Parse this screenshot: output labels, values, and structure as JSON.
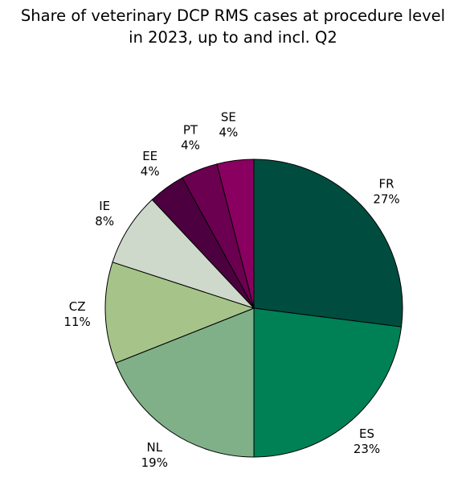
{
  "chart_data": {
    "type": "pie",
    "title_lines": [
      "Share of veterinary DCP RMS cases at procedure level",
      "in 2023, up to and incl. Q2"
    ],
    "slices": [
      {
        "label": "FR",
        "pct_text": "27%",
        "value": 27,
        "color": "#004d3f"
      },
      {
        "label": "ES",
        "pct_text": "23%",
        "value": 23,
        "color": "#008055"
      },
      {
        "label": "NL",
        "pct_text": "19%",
        "value": 19,
        "color": "#80b088"
      },
      {
        "label": "CZ",
        "pct_text": "11%",
        "value": 11,
        "color": "#a6c48a"
      },
      {
        "label": "IE",
        "pct_text": "8%",
        "value": 8,
        "color": "#cfd9cb"
      },
      {
        "label": "EE",
        "pct_text": "4%",
        "value": 4,
        "color": "#4d0040"
      },
      {
        "label": "PT",
        "pct_text": "4%",
        "value": 4,
        "color": "#6b0050"
      },
      {
        "label": "SE",
        "pct_text": "4%",
        "value": 4,
        "color": "#8a0060"
      }
    ],
    "start": "12 o'clock",
    "direction": "clockwise",
    "legend": "none"
  }
}
